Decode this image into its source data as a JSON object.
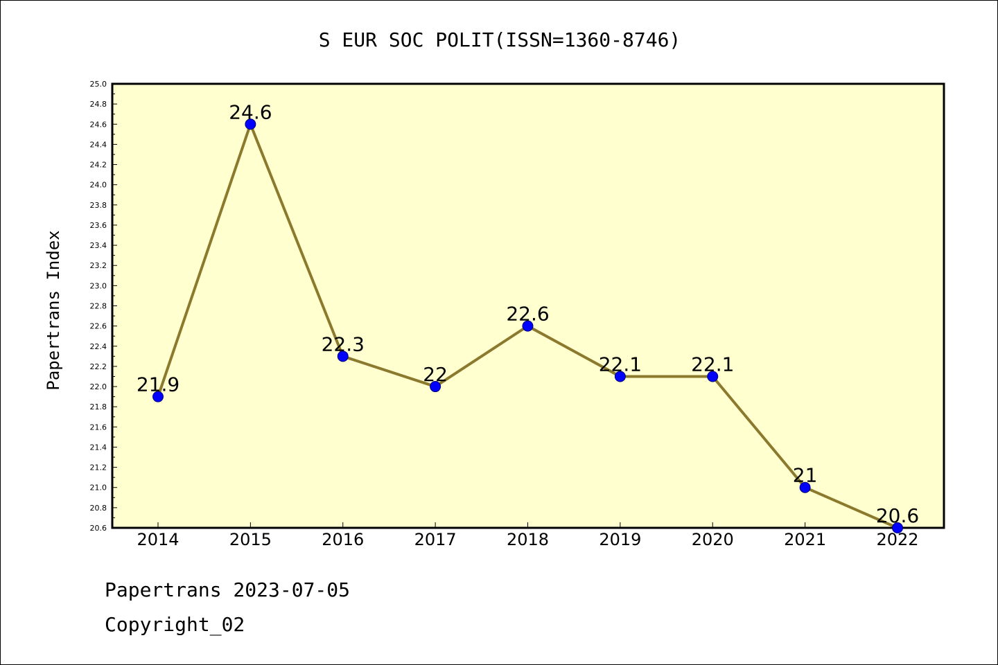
{
  "chart_data": {
    "type": "line",
    "title": "S EUR SOC POLIT(ISSN=1360-8746)",
    "ylabel": "Papertrans Index",
    "xlabel": "",
    "categories": [
      "2014",
      "2015",
      "2016",
      "2017",
      "2018",
      "2019",
      "2020",
      "2021",
      "2022"
    ],
    "values": [
      21.9,
      24.6,
      22.3,
      22.0,
      22.6,
      22.1,
      22.1,
      21.0,
      20.6
    ],
    "data_labels": [
      "21.9",
      "24.6",
      "22.3",
      "22",
      "22.6",
      "22.1",
      "22.1",
      "21",
      "20.6"
    ],
    "ylim": [
      20.6,
      25.0
    ],
    "yticks": [
      "20.6",
      "20.8",
      "21.0",
      "21.2",
      "21.4",
      "21.6",
      "21.8",
      "22.0",
      "22.2",
      "22.4",
      "22.6",
      "22.8",
      "23.0",
      "23.2",
      "23.4",
      "23.6",
      "23.8",
      "24.0",
      "24.2",
      "24.4",
      "24.6",
      "24.8",
      "25.0"
    ],
    "grid": false,
    "line_color": "#8b7a2e",
    "marker_color": "#0000ff",
    "plot_background": "#ffffd0"
  },
  "footer": {
    "line1": "Papertrans 2023-07-05",
    "line2": "Copyright_02"
  }
}
